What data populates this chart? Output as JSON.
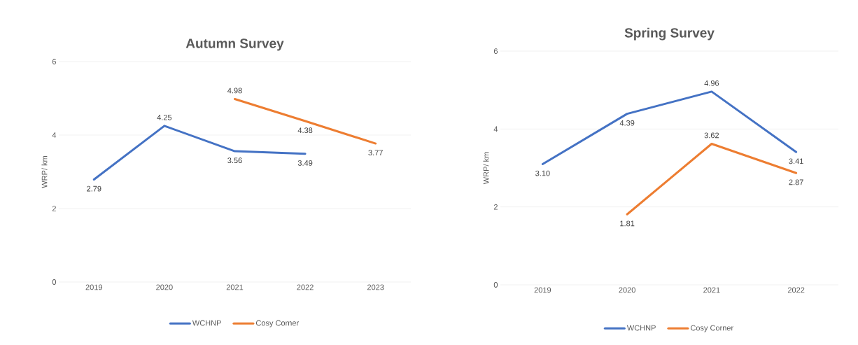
{
  "chart_data": [
    {
      "type": "line",
      "title": "Autumn Survey",
      "ylabel": "WRP/ km",
      "categories": [
        "2019",
        "2020",
        "2021",
        "2022",
        "2023"
      ],
      "series": [
        {
          "name": "WCHNP",
          "color": "#4472c4",
          "values": [
            2.79,
            4.25,
            3.56,
            3.49,
            null
          ],
          "value_labels": [
            "2.79",
            "4.25",
            "3.56",
            "3.49",
            null
          ]
        },
        {
          "name": "Cosy Corner",
          "color": "#ed7d31",
          "values": [
            null,
            null,
            4.98,
            4.38,
            3.77
          ],
          "value_labels": [
            null,
            null,
            "4.98",
            "4.38",
            "3.77"
          ]
        }
      ],
      "ylim": [
        0,
        6
      ],
      "yticks": [
        0,
        2,
        4,
        6
      ],
      "grid": "y",
      "legend": "bottom",
      "marker": "none",
      "line_style": "solid"
    },
    {
      "type": "line",
      "title": "Spring Survey",
      "ylabel": "WRP/ km",
      "categories": [
        "2019",
        "2020",
        "2021",
        "2022"
      ],
      "series": [
        {
          "name": "WCHNP",
          "color": "#4472c4",
          "values": [
            3.1,
            4.39,
            4.96,
            3.41
          ],
          "value_labels": [
            "3.10",
            "4.39",
            "4.96",
            "3.41"
          ]
        },
        {
          "name": "Cosy Corner",
          "color": "#ed7d31",
          "values": [
            null,
            1.81,
            3.62,
            2.87
          ],
          "value_labels": [
            null,
            "1.81",
            "3.62",
            "2.87"
          ]
        }
      ],
      "ylim": [
        0,
        6
      ],
      "yticks": [
        0,
        2,
        4,
        6
      ],
      "grid": "y",
      "legend": "bottom",
      "marker": "none",
      "line_style": "solid"
    }
  ]
}
